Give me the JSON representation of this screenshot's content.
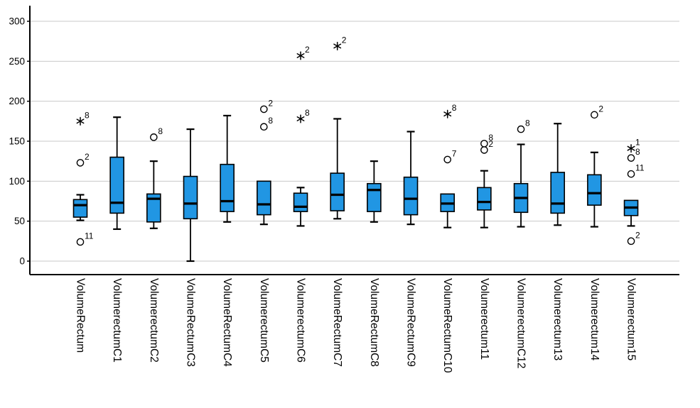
{
  "chart_data": {
    "type": "boxplot",
    "title": "",
    "xlabel": "",
    "ylabel": "",
    "ylim": [
      0,
      300
    ],
    "yticks": [
      0,
      50,
      100,
      150,
      200,
      250,
      300
    ],
    "grid": true,
    "legend": "none",
    "colors": {
      "box_fill": "#2196E3",
      "box_border": "#000000",
      "median": "#000000",
      "whisker": "#000000",
      "outlier_fill": "#FFFFFF",
      "outlier_stroke": "#000000",
      "extreme_marker": "#000000",
      "gridline": "#C9C9C9",
      "axis": "#000000",
      "text": "#000000",
      "background": "#FFFFFF"
    },
    "categories": [
      {
        "label": "VolumeRectum",
        "whisker_low": 51,
        "q1": 55,
        "median": 70,
        "q3": 77,
        "whisker_high": 83,
        "outliers": [
          {
            "value": 24,
            "case": "11",
            "marker": "circle"
          },
          {
            "value": 123,
            "case": "2",
            "marker": "circle"
          },
          {
            "value": 175,
            "case": "8",
            "marker": "star"
          }
        ]
      },
      {
        "label": "VolumerectumC1",
        "whisker_low": 40,
        "q1": 60,
        "median": 73,
        "q3": 130,
        "whisker_high": 180,
        "outliers": []
      },
      {
        "label": "VolumerectumC2",
        "whisker_low": 41,
        "q1": 49,
        "median": 78,
        "q3": 84,
        "whisker_high": 125,
        "outliers": [
          {
            "value": 155,
            "case": "8",
            "marker": "circle"
          }
        ]
      },
      {
        "label": "VolumeRectumC3",
        "whisker_low": 0,
        "q1": 53,
        "median": 72,
        "q3": 106,
        "whisker_high": 165,
        "outliers": []
      },
      {
        "label": "VolumeRectumC4",
        "whisker_low": 49,
        "q1": 62,
        "median": 75,
        "q3": 121,
        "whisker_high": 182,
        "outliers": []
      },
      {
        "label": "VolumerectumC5",
        "whisker_low": 46,
        "q1": 58,
        "median": 71,
        "q3": 100,
        "whisker_high": 100,
        "outliers": [
          {
            "value": 168,
            "case": "8",
            "marker": "circle"
          },
          {
            "value": 190,
            "case": "2",
            "marker": "circle"
          }
        ]
      },
      {
        "label": "VolumerectumC6",
        "whisker_low": 44,
        "q1": 62,
        "median": 68,
        "q3": 85,
        "whisker_high": 92,
        "outliers": [
          {
            "value": 178,
            "case": "8",
            "marker": "star"
          },
          {
            "value": 257,
            "case": "2",
            "marker": "star"
          }
        ]
      },
      {
        "label": "VolumeRectumC7",
        "whisker_low": 53,
        "q1": 63,
        "median": 83,
        "q3": 110,
        "whisker_high": 178,
        "outliers": [
          {
            "value": 269,
            "case": "2",
            "marker": "star"
          }
        ]
      },
      {
        "label": "VolumeRectumC8",
        "whisker_low": 49,
        "q1": 62,
        "median": 89,
        "q3": 97,
        "whisker_high": 125,
        "outliers": []
      },
      {
        "label": "VolumeRectumC9",
        "whisker_low": 46,
        "q1": 58,
        "median": 78,
        "q3": 105,
        "whisker_high": 162,
        "outliers": []
      },
      {
        "label": "VolumeRectumC10",
        "whisker_low": 42,
        "q1": 62,
        "median": 72,
        "q3": 84,
        "whisker_high": 84,
        "outliers": [
          {
            "value": 127,
            "case": "7",
            "marker": "circle"
          },
          {
            "value": 184,
            "case": "8",
            "marker": "star"
          }
        ]
      },
      {
        "label": "Volumerectum11",
        "whisker_low": 42,
        "q1": 64,
        "median": 74,
        "q3": 92,
        "whisker_high": 113,
        "outliers": [
          {
            "value": 139,
            "case": "2",
            "marker": "circle"
          },
          {
            "value": 147,
            "case": "8",
            "marker": "circle"
          }
        ]
      },
      {
        "label": "VolumerectumC12",
        "whisker_low": 43,
        "q1": 61,
        "median": 79,
        "q3": 97,
        "whisker_high": 146,
        "outliers": [
          {
            "value": 165,
            "case": "8",
            "marker": "circle"
          }
        ]
      },
      {
        "label": "Volumerectum13",
        "whisker_low": 45,
        "q1": 60,
        "median": 72,
        "q3": 111,
        "whisker_high": 172,
        "outliers": []
      },
      {
        "label": "Volumerectum14",
        "whisker_low": 43,
        "q1": 70,
        "median": 85,
        "q3": 108,
        "whisker_high": 136,
        "outliers": [
          {
            "value": 183,
            "case": "2",
            "marker": "circle"
          }
        ]
      },
      {
        "label": "Volumerectum15",
        "whisker_low": 44,
        "q1": 57,
        "median": 67,
        "q3": 76,
        "whisker_high": 76,
        "outliers": [
          {
            "value": 25,
            "case": "2",
            "marker": "circle"
          },
          {
            "value": 109,
            "case": "11",
            "marker": "circle"
          },
          {
            "value": 129,
            "case": "8",
            "marker": "circle"
          },
          {
            "value": 141,
            "case": "1",
            "marker": "star"
          }
        ]
      }
    ]
  }
}
